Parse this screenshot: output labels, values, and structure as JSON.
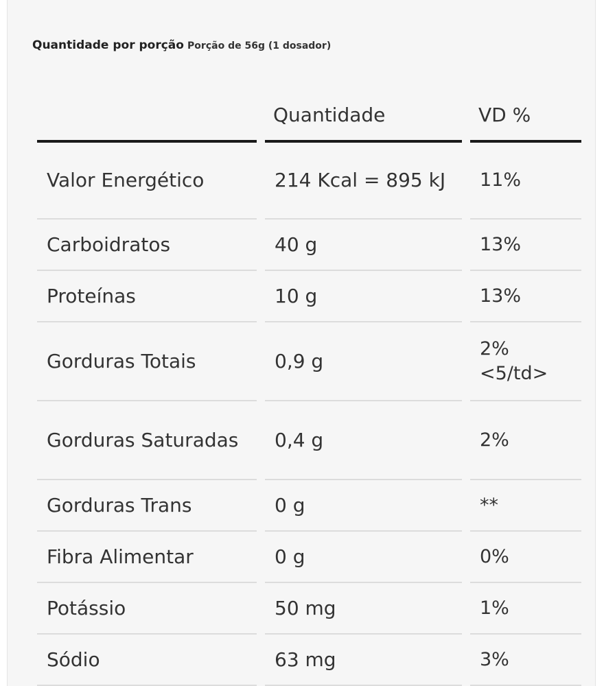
{
  "serving": {
    "label": "Quantidade por porção",
    "value": "Porção de 56g (1 dosador)"
  },
  "table": {
    "headers": [
      "",
      "Quantidade",
      "VD %"
    ],
    "rows": [
      {
        "nutrient": "Valor Energético",
        "amount": "214 Kcal = 895 kJ",
        "dv": "11%"
      },
      {
        "nutrient": "Carboidratos",
        "amount": "40 g",
        "dv": "13%"
      },
      {
        "nutrient": "Proteínas",
        "amount": "10 g",
        "dv": "13%"
      },
      {
        "nutrient": "Gorduras Totais",
        "amount": "0,9 g",
        "dv": "2% <5/td>"
      },
      {
        "nutrient": "Gorduras Saturadas",
        "amount": "0,4 g",
        "dv": "2%"
      },
      {
        "nutrient": "Gorduras Trans",
        "amount": "0 g",
        "dv": "**"
      },
      {
        "nutrient": "Fibra Alimentar",
        "amount": "0 g",
        "dv": "0%"
      },
      {
        "nutrient": "Potássio",
        "amount": "50 mg",
        "dv": "1%"
      },
      {
        "nutrient": "Sódio",
        "amount": "63 mg",
        "dv": "3%"
      }
    ]
  }
}
